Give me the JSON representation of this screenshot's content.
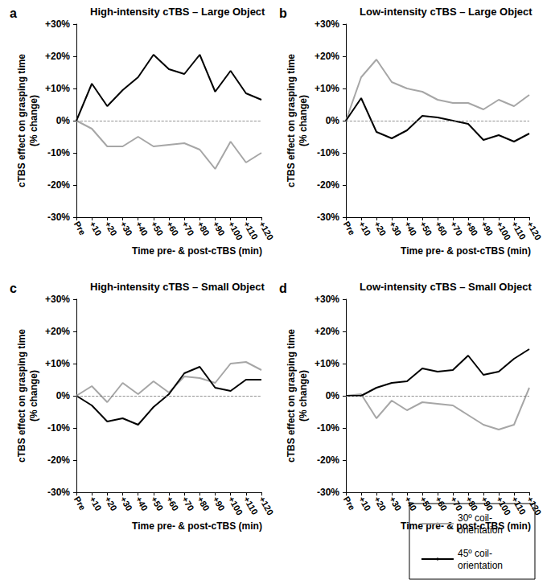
{
  "chart_data": [
    {
      "type": "line",
      "panel_label": "a",
      "title": "High-intensity cTBS – Large Object",
      "x_label": "Time pre- & post-cTBS (min)",
      "y_label": "cTBS effect on grasping time\n(% change)",
      "categories": [
        "Pre",
        "+10",
        "+20",
        "+30",
        "+40",
        "+50",
        "+60",
        "+70",
        "+80",
        "+90",
        "+100",
        "+110",
        "+120"
      ],
      "ylim": [
        -30,
        30
      ],
      "yticks": [
        {
          "value": -30,
          "label": "-30%"
        },
        {
          "value": -20,
          "label": "-20%"
        },
        {
          "value": -10,
          "label": "-10%"
        },
        {
          "value": 0,
          "label": "0%"
        },
        {
          "value": 10,
          "label": "+10%"
        },
        {
          "value": 20,
          "label": "+20%"
        },
        {
          "value": 30,
          "label": "+30%"
        }
      ],
      "series": [
        {
          "name": "30º coil-orientation",
          "color": "#a6a6a6",
          "values": [
            0,
            -2.5,
            -8,
            -8,
            -5,
            -8,
            -7.5,
            -7,
            -9,
            -15,
            -6.5,
            -13,
            -10
          ]
        },
        {
          "name": "45º coil-orientation",
          "color": "#000000",
          "values": [
            0,
            11.5,
            4.5,
            9.5,
            13.5,
            20.5,
            16,
            14.5,
            20.5,
            9,
            15.5,
            8.5,
            6.5
          ]
        }
      ]
    },
    {
      "type": "line",
      "panel_label": "b",
      "title": "Low-intensity cTBS – Large Object",
      "x_label": "Time pre- & post-cTBS (min)",
      "y_label": "cTBS effect on grasping time\n(% change)",
      "categories": [
        "Pre",
        "+10",
        "+20",
        "+30",
        "+40",
        "+50",
        "+60",
        "+70",
        "+80",
        "+90",
        "+100",
        "+110",
        "+120"
      ],
      "ylim": [
        -30,
        30
      ],
      "yticks": [
        {
          "value": -30,
          "label": "-30%"
        },
        {
          "value": -20,
          "label": "-20%"
        },
        {
          "value": -10,
          "label": "-10%"
        },
        {
          "value": 0,
          "label": "0%"
        },
        {
          "value": 10,
          "label": "+10%"
        },
        {
          "value": 20,
          "label": "+20%"
        },
        {
          "value": 30,
          "label": "+30%"
        }
      ],
      "series": [
        {
          "name": "30º coil-orientation",
          "color": "#a6a6a6",
          "values": [
            0,
            13.5,
            19,
            12,
            10,
            9,
            6.5,
            5.5,
            5.5,
            3.5,
            6.5,
            4.5,
            8
          ]
        },
        {
          "name": "45º coil-orientation",
          "color": "#000000",
          "values": [
            0,
            7,
            -3.5,
            -5.5,
            -3,
            1.5,
            1,
            0,
            -1,
            -6,
            -4.5,
            -6.5,
            -4
          ]
        }
      ]
    },
    {
      "type": "line",
      "panel_label": "c",
      "title": "High-intensity cTBS – Small Object",
      "x_label": "Time pre- & post-cTBS (min)",
      "y_label": "cTBS effect on grasping time\n(% change)",
      "categories": [
        "Pre",
        "+10",
        "+20",
        "+30",
        "+40",
        "+50",
        "+60",
        "+70",
        "+80",
        "+90",
        "+100",
        "+110",
        "+120"
      ],
      "ylim": [
        -30,
        30
      ],
      "yticks": [
        {
          "value": -30,
          "label": "-30%"
        },
        {
          "value": -20,
          "label": "-20%"
        },
        {
          "value": -10,
          "label": "-10%"
        },
        {
          "value": 0,
          "label": "0%"
        },
        {
          "value": 10,
          "label": "+10%"
        },
        {
          "value": 20,
          "label": "+20%"
        },
        {
          "value": 30,
          "label": "+30%"
        }
      ],
      "series": [
        {
          "name": "30º coil-orientation",
          "color": "#a6a6a6",
          "values": [
            0,
            3,
            -2,
            4,
            0.5,
            4.5,
            1,
            6,
            5.5,
            4,
            10,
            10.5,
            8
          ]
        },
        {
          "name": "45º coil-orientation",
          "color": "#000000",
          "values": [
            0,
            -3,
            -8,
            -7,
            -9,
            -3.5,
            0.5,
            7,
            9,
            2.5,
            1.5,
            5,
            5
          ]
        }
      ]
    },
    {
      "type": "line",
      "panel_label": "d",
      "title": "Low-intensity cTBS – Small Object",
      "x_label": "Time pre- & post-cTBS (min)",
      "y_label": "cTBS effect on grasping time\n(% change)",
      "categories": [
        "Pre",
        "+10",
        "+20",
        "+30",
        "+40",
        "+50",
        "+60",
        "+70",
        "+80",
        "+90",
        "+100",
        "+110",
        "+120"
      ],
      "ylim": [
        -30,
        30
      ],
      "yticks": [
        {
          "value": -30,
          "label": "-30%"
        },
        {
          "value": -20,
          "label": "-20%"
        },
        {
          "value": -10,
          "label": "-10%"
        },
        {
          "value": 0,
          "label": "0%"
        },
        {
          "value": 10,
          "label": "+10%"
        },
        {
          "value": 20,
          "label": "+20%"
        },
        {
          "value": 30,
          "label": "+30%"
        }
      ],
      "legend": "lower right",
      "series": [
        {
          "name": "30º coil-orientation",
          "color": "#a6a6a6",
          "values": [
            0,
            0.5,
            -7,
            -1.5,
            -4.5,
            -2,
            -2.5,
            -3,
            -6,
            -9,
            -10.5,
            -9,
            2.5
          ]
        },
        {
          "name": "45º coil-orientation",
          "color": "#000000",
          "values": [
            0,
            0,
            2.5,
            4,
            4.5,
            8.5,
            7.5,
            8,
            12.5,
            6.5,
            7.5,
            11.5,
            14.5
          ]
        }
      ]
    }
  ]
}
